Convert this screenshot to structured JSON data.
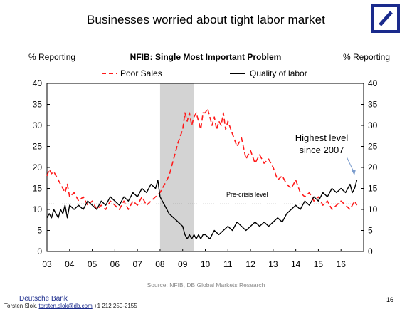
{
  "header": {
    "title": "Businesses worried about tight labor market"
  },
  "footer": {
    "source": "Source: NFIB, DB Global Markets Research",
    "brand": "Deutsche Bank",
    "author": "Torsten Slok,",
    "email": "torsten.slok@db.com",
    "phone": "+1 212 250-2155",
    "page_number": "16"
  },
  "colors": {
    "poor_sales": "#ff1a1a",
    "quality_of_labor": "#000000",
    "recession_shading": "#d3d3d3",
    "brand": "#1a2a8c"
  },
  "chart_data": {
    "type": "line",
    "title": "NFIB: Single Most Important Problem",
    "ylabel_left": "% Reporting",
    "ylabel_right": "% Reporting",
    "ylim": [
      0,
      40
    ],
    "yticks": [
      0,
      5,
      10,
      15,
      20,
      25,
      30,
      35,
      40
    ],
    "xlim": [
      2003,
      2017
    ],
    "xtick_labels": [
      "03",
      "04",
      "05",
      "06",
      "07",
      "08",
      "09",
      "10",
      "11",
      "12",
      "13",
      "14",
      "15",
      "16"
    ],
    "legend": {
      "position": "top-center",
      "entries": [
        "Poor Sales",
        "Quality of labor"
      ]
    },
    "recession_shading": {
      "start": 2008.0,
      "end": 2009.5
    },
    "reference_line": {
      "value": 11.3,
      "label": "Pre-crisis level"
    },
    "annotation": {
      "text_line1": "Highest level",
      "text_line2": "since 2007",
      "points_to": [
        2016.7,
        17
      ]
    },
    "series": [
      {
        "name": "Poor Sales",
        "style": "dashed",
        "x": [
          2003.0,
          2003.1,
          2003.2,
          2003.3,
          2003.4,
          2003.5,
          2003.6,
          2003.7,
          2003.8,
          2003.9,
          2004.0,
          2004.2,
          2004.4,
          2004.6,
          2004.8,
          2005.0,
          2005.2,
          2005.4,
          2005.6,
          2005.8,
          2006.0,
          2006.2,
          2006.4,
          2006.6,
          2006.8,
          2007.0,
          2007.2,
          2007.4,
          2007.6,
          2007.8,
          2008.0,
          2008.2,
          2008.4,
          2008.6,
          2008.8,
          2009.0,
          2009.1,
          2009.2,
          2009.3,
          2009.4,
          2009.5,
          2009.6,
          2009.7,
          2009.8,
          2009.9,
          2010.0,
          2010.1,
          2010.2,
          2010.3,
          2010.4,
          2010.5,
          2010.6,
          2010.7,
          2010.8,
          2010.9,
          2011.0,
          2011.2,
          2011.4,
          2011.6,
          2011.8,
          2012.0,
          2012.2,
          2012.4,
          2012.6,
          2012.8,
          2013.0,
          2013.2,
          2013.4,
          2013.6,
          2013.8,
          2014.0,
          2014.2,
          2014.4,
          2014.6,
          2014.8,
          2015.0,
          2015.2,
          2015.4,
          2015.6,
          2015.8,
          2016.0,
          2016.2,
          2016.4,
          2016.6,
          2016.7
        ],
        "values": [
          18,
          19.5,
          18.5,
          19,
          18,
          17,
          16,
          15,
          14,
          16,
          13,
          14,
          12,
          13,
          11,
          12,
          10,
          11,
          10,
          12,
          11,
          10,
          12,
          10,
          12,
          11,
          13,
          11,
          12,
          13,
          14,
          16,
          18,
          22,
          26,
          29,
          33,
          31,
          33,
          30,
          32,
          33,
          31,
          29,
          33,
          33,
          34,
          32,
          30,
          32,
          29,
          31,
          30,
          33,
          29,
          31,
          28,
          25,
          27,
          22,
          24,
          21,
          23,
          21,
          22,
          20,
          17,
          18,
          16,
          15,
          17,
          14,
          13,
          14,
          12,
          13,
          11,
          12,
          10,
          11,
          12,
          11,
          10,
          12,
          11
        ]
      },
      {
        "name": "Quality of labor",
        "style": "solid",
        "x": [
          2003.0,
          2003.1,
          2003.2,
          2003.3,
          2003.4,
          2003.5,
          2003.6,
          2003.7,
          2003.8,
          2003.9,
          2004.0,
          2004.2,
          2004.4,
          2004.6,
          2004.8,
          2005.0,
          2005.2,
          2005.4,
          2005.6,
          2005.8,
          2006.0,
          2006.2,
          2006.4,
          2006.6,
          2006.8,
          2007.0,
          2007.2,
          2007.4,
          2007.6,
          2007.8,
          2007.9,
          2008.0,
          2008.2,
          2008.4,
          2008.6,
          2008.8,
          2009.0,
          2009.1,
          2009.2,
          2009.3,
          2009.4,
          2009.5,
          2009.6,
          2009.7,
          2009.8,
          2009.9,
          2010.0,
          2010.2,
          2010.4,
          2010.6,
          2010.8,
          2011.0,
          2011.2,
          2011.4,
          2011.6,
          2011.8,
          2012.0,
          2012.2,
          2012.4,
          2012.6,
          2012.8,
          2013.0,
          2013.2,
          2013.4,
          2013.6,
          2013.8,
          2014.0,
          2014.2,
          2014.4,
          2014.6,
          2014.8,
          2015.0,
          2015.2,
          2015.4,
          2015.6,
          2015.8,
          2016.0,
          2016.2,
          2016.4,
          2016.5,
          2016.6,
          2016.7
        ],
        "values": [
          8,
          9,
          8,
          10,
          9,
          8,
          10,
          9,
          11,
          8,
          11,
          10,
          11,
          10,
          12,
          11,
          10,
          12,
          11,
          13,
          12,
          11,
          13,
          12,
          14,
          13,
          15,
          14,
          16,
          15,
          17,
          13,
          11,
          9,
          8,
          7,
          6,
          4,
          3,
          4,
          3,
          4,
          3,
          4,
          3,
          4,
          4,
          3,
          5,
          4,
          5,
          6,
          5,
          7,
          6,
          5,
          6,
          7,
          6,
          7,
          6,
          7,
          8,
          7,
          9,
          10,
          11,
          10,
          12,
          11,
          13,
          12,
          14,
          13,
          15,
          14,
          15,
          14,
          16,
          14,
          15,
          17
        ]
      }
    ]
  }
}
